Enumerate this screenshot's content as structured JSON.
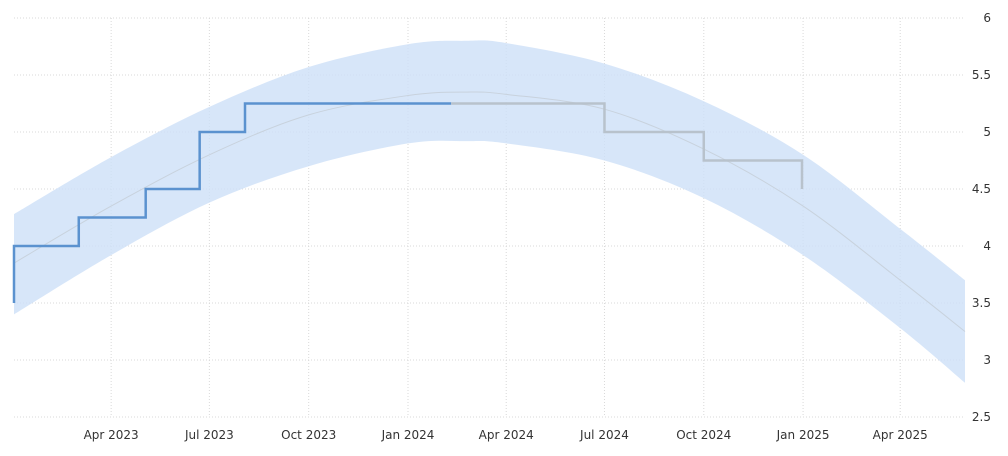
{
  "chart_data": {
    "type": "line",
    "title": "",
    "xlabel": "",
    "ylabel": "",
    "x_ticks": [
      {
        "label": "Apr 2023",
        "date": "2023-04-01"
      },
      {
        "label": "Jul 2023",
        "date": "2023-07-01"
      },
      {
        "label": "Oct 2023",
        "date": "2023-10-01"
      },
      {
        "label": "Jan 2024",
        "date": "2024-01-01"
      },
      {
        "label": "Apr 2024",
        "date": "2024-04-01"
      },
      {
        "label": "Jul 2024",
        "date": "2024-07-01"
      },
      {
        "label": "Oct 2024",
        "date": "2024-10-01"
      },
      {
        "label": "Jan 2025",
        "date": "2025-01-01"
      },
      {
        "label": "Apr 2025",
        "date": "2025-04-01"
      }
    ],
    "y_ticks": [
      "2.5",
      "3",
      "3.5",
      "4",
      "4.5",
      "5",
      "5.5",
      "6"
    ],
    "xlim": [
      "2023-01-01",
      "2025-05-31"
    ],
    "ylim": [
      2.5,
      6
    ],
    "grid": true,
    "y_axis_position": "right",
    "series": [
      {
        "color": "#5b92cf",
        "step": true,
        "points": [
          {
            "x": "2023-01-01",
            "y": 3.5
          },
          {
            "x": "2023-01-01",
            "y": 4.0
          },
          {
            "x": "2023-03-02",
            "y": 4.25
          },
          {
            "x": "2023-05-03",
            "y": 4.5
          },
          {
            "x": "2023-06-22",
            "y": 5.0
          },
          {
            "x": "2023-08-03",
            "y": 5.25
          },
          {
            "x": "2024-02-10",
            "y": 5.25
          }
        ]
      },
      {
        "color": "#b8c2cc",
        "step": true,
        "points": [
          {
            "x": "2024-02-10",
            "y": 5.25
          },
          {
            "x": "2024-07-01",
            "y": 5.0
          },
          {
            "x": "2024-10-01",
            "y": 4.75
          },
          {
            "x": "2024-12-31",
            "y": 4.75
          },
          {
            "x": "2024-12-31",
            "y": 4.5
          }
        ]
      }
    ],
    "trend": {
      "color": "#c8d2dd",
      "points": [
        {
          "x": "2023-01-01",
          "y": 3.85
        },
        {
          "x": "2023-04-01",
          "y": 4.35
        },
        {
          "x": "2023-07-01",
          "y": 4.8
        },
        {
          "x": "2023-10-01",
          "y": 5.15
        },
        {
          "x": "2024-01-01",
          "y": 5.32
        },
        {
          "x": "2024-02-24",
          "y": 5.35
        },
        {
          "x": "2024-04-01",
          "y": 5.33
        },
        {
          "x": "2024-07-01",
          "y": 5.2
        },
        {
          "x": "2024-10-01",
          "y": 4.85
        },
        {
          "x": "2025-01-01",
          "y": 4.35
        },
        {
          "x": "2025-04-01",
          "y": 3.7
        },
        {
          "x": "2025-05-31",
          "y": 3.25
        }
      ]
    },
    "band": {
      "color": "#cde0f7",
      "opacity": 0.8,
      "upper": [
        {
          "x": "2023-01-01",
          "y": 4.28
        },
        {
          "x": "2023-04-01",
          "y": 4.78
        },
        {
          "x": "2023-07-01",
          "y": 5.22
        },
        {
          "x": "2023-10-01",
          "y": 5.57
        },
        {
          "x": "2024-01-01",
          "y": 5.77
        },
        {
          "x": "2024-02-24",
          "y": 5.8
        },
        {
          "x": "2024-04-01",
          "y": 5.78
        },
        {
          "x": "2024-07-01",
          "y": 5.6
        },
        {
          "x": "2024-10-01",
          "y": 5.27
        },
        {
          "x": "2025-01-01",
          "y": 4.8
        },
        {
          "x": "2025-04-01",
          "y": 4.15
        },
        {
          "x": "2025-05-31",
          "y": 3.7
        }
      ],
      "lower": [
        {
          "x": "2023-01-01",
          "y": 3.4
        },
        {
          "x": "2023-04-01",
          "y": 3.92
        },
        {
          "x": "2023-07-01",
          "y": 4.38
        },
        {
          "x": "2023-10-01",
          "y": 4.7
        },
        {
          "x": "2024-01-01",
          "y": 4.9
        },
        {
          "x": "2024-02-24",
          "y": 4.92
        },
        {
          "x": "2024-04-01",
          "y": 4.9
        },
        {
          "x": "2024-07-01",
          "y": 4.75
        },
        {
          "x": "2024-10-01",
          "y": 4.42
        },
        {
          "x": "2025-01-01",
          "y": 3.92
        },
        {
          "x": "2025-04-01",
          "y": 3.28
        },
        {
          "x": "2025-05-31",
          "y": 2.8
        }
      ]
    }
  }
}
